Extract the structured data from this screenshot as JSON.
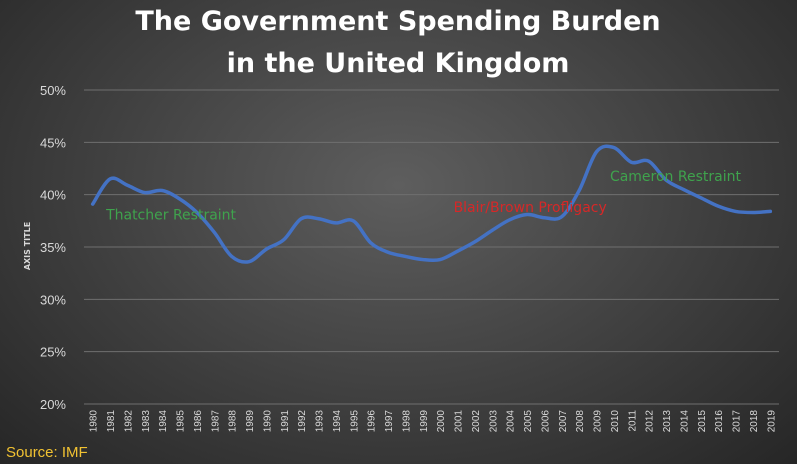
{
  "chart_data": {
    "type": "line",
    "title_lines": [
      "The Government Spending Burden",
      "in the United Kingdom"
    ],
    "ylabel": "AXIS TITLE",
    "xlabel": "",
    "ylim": [
      20,
      50
    ],
    "yticks": [
      20,
      25,
      30,
      35,
      40,
      45,
      50
    ],
    "ytick_labels": [
      "20%",
      "25%",
      "30%",
      "35%",
      "40%",
      "45%",
      "50%"
    ],
    "grid": true,
    "legend": "none",
    "line_color": "#4472c4",
    "x": [
      "1980",
      "1981",
      "1982",
      "1983",
      "1984",
      "1985",
      "1986",
      "1987",
      "1988",
      "1989",
      "1990",
      "1991",
      "1992",
      "1993",
      "1994",
      "1995",
      "1996",
      "1997",
      "1998",
      "1999",
      "2000",
      "2001",
      "2002",
      "2003",
      "2004",
      "2005",
      "2006",
      "2007",
      "2008",
      "2009",
      "2010",
      "2011",
      "2012",
      "2013",
      "2014",
      "2015",
      "2016",
      "2017",
      "2018",
      "2019"
    ],
    "series": [
      {
        "values": [
          39.1,
          41.5,
          40.9,
          40.2,
          40.4,
          39.6,
          38.3,
          36.4,
          34.1,
          33.6,
          34.8,
          35.7,
          37.7,
          37.7,
          37.3,
          37.5,
          35.4,
          34.5,
          34.1,
          33.8,
          33.8,
          34.6,
          35.5,
          36.6,
          37.6,
          38.1,
          37.8,
          37.9,
          40.4,
          44.1,
          44.5,
          43.1,
          43.2,
          41.4,
          40.5,
          39.7,
          38.9,
          38.4,
          38.3,
          38.4
        ]
      }
    ],
    "annotations": [
      {
        "text": "Thatcher Restraint",
        "x": "1981",
        "y": 38.1,
        "color": "#3fa34d"
      },
      {
        "text": "Blair/Brown Profligacy",
        "x": "2001",
        "y": 38.8,
        "color": "#d62828"
      },
      {
        "text": "Cameron Restraint",
        "x": "2010",
        "y": 41.8,
        "color": "#3fa34d"
      }
    ],
    "source": "Source: IMF"
  }
}
